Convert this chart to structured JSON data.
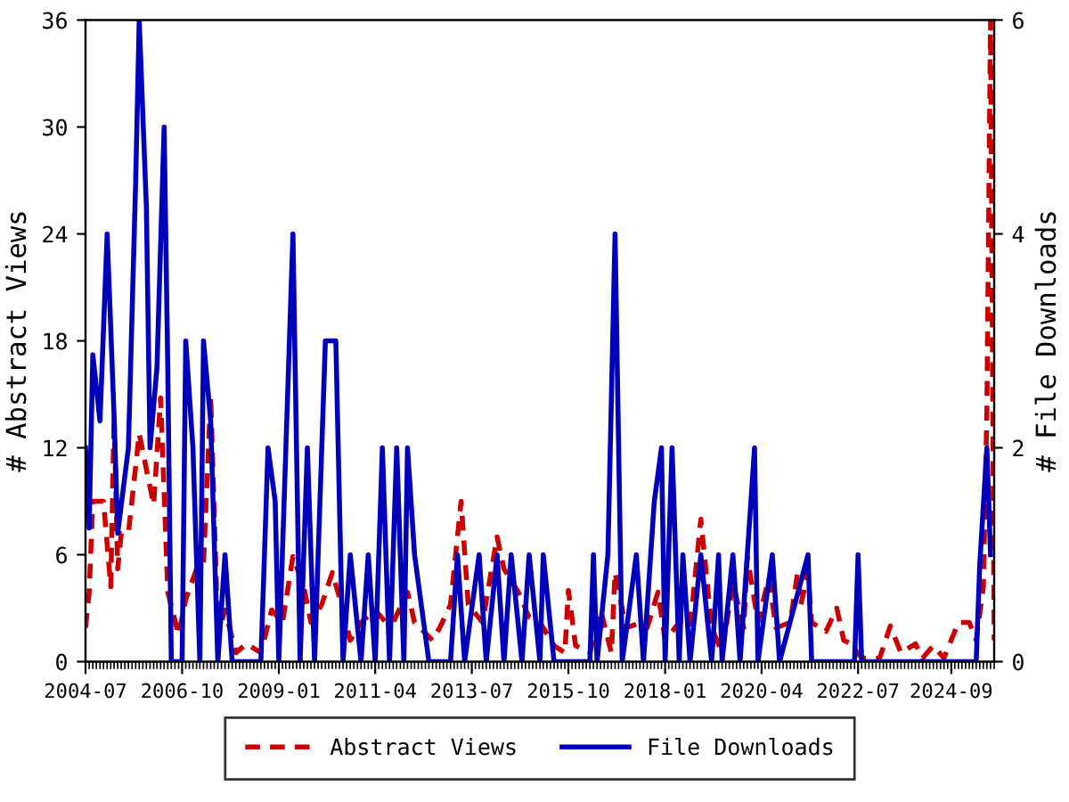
{
  "chart_data": {
    "type": "line",
    "ylabel": "# Abstract Views",
    "y2label": "# File Downloads",
    "xlim": [
      "2004-07",
      "2025-09"
    ],
    "xticks": [
      {
        "value": "2004-07",
        "label": "2004-07"
      },
      {
        "value": "2006-10",
        "label": "2006-10"
      },
      {
        "value": "2009-01",
        "label": "2009-01"
      },
      {
        "value": "2011-04",
        "label": "2011-04"
      },
      {
        "value": "2013-07",
        "label": "2013-07"
      },
      {
        "value": "2015-10",
        "label": "2015-10"
      },
      {
        "value": "2018-01",
        "label": "2018-01"
      },
      {
        "value": "2020-04",
        "label": "2020-04"
      },
      {
        "value": "2022-07",
        "label": "2022-07"
      },
      {
        "value": "2024-09",
        "label": "2024-09"
      }
    ],
    "ylim": [
      0,
      36
    ],
    "yticks": [
      0,
      6,
      12,
      18,
      24,
      30,
      36
    ],
    "y2lim": [
      0,
      6
    ],
    "y2ticks": [
      0,
      2,
      4,
      6
    ],
    "grid": false,
    "legend": "bottom",
    "marker": "none",
    "series": [
      {
        "name": "Abstract Views",
        "color": "#cc0000",
        "line_style": "dashed",
        "x": [
          "2004-07",
          "2004-08",
          "2004-09",
          "2004-12",
          "2005-02",
          "2005-03",
          "2005-04",
          "2005-05",
          "2005-07",
          "2005-10",
          "2005-12",
          "2006-02",
          "2006-04",
          "2006-06",
          "2006-09",
          "2006-11",
          "2007-02",
          "2007-04",
          "2007-06",
          "2007-08",
          "2007-10",
          "2008-01",
          "2008-04",
          "2008-08",
          "2008-11",
          "2009-02",
          "2009-05",
          "2009-08",
          "2009-10",
          "2010-01",
          "2010-04",
          "2010-07",
          "2010-09",
          "2010-12",
          "2011-04",
          "2011-07",
          "2011-09",
          "2012-01",
          "2012-03",
          "2012-08",
          "2012-10",
          "2013-01",
          "2013-04",
          "2013-06",
          "2013-10",
          "2014-02",
          "2014-04",
          "2014-08",
          "2014-11",
          "2015-02",
          "2015-06",
          "2015-09",
          "2015-10",
          "2015-12",
          "2016-04",
          "2016-07",
          "2016-10",
          "2016-11",
          "2017-02",
          "2017-05",
          "2017-08",
          "2017-11",
          "2018-01",
          "2018-05",
          "2018-08",
          "2018-11",
          "2019-02",
          "2019-05",
          "2019-08",
          "2019-11",
          "2019-12",
          "2020-03",
          "2020-06",
          "2020-08",
          "2020-12",
          "2021-02",
          "2021-03",
          "2021-05",
          "2021-06",
          "2021-10",
          "2022-01",
          "2022-03",
          "2022-05",
          "2022-08",
          "2023-01",
          "2023-04",
          "2023-07",
          "2023-11",
          "2024-01",
          "2024-04",
          "2024-07",
          "2024-11",
          "2025-02",
          "2025-04",
          "2025-06",
          "2025-07",
          "2025-08",
          "2025-09"
        ],
        "values": [
          1.9,
          3.9,
          9,
          9,
          4.2,
          13.8,
          5.2,
          7.2,
          7.2,
          12.8,
          10.8,
          8.8,
          14.8,
          3.9,
          1.5,
          3.5,
          5.2,
          5.5,
          14.9,
          1.5,
          2.9,
          0.5,
          1.0,
          0.5,
          2.9,
          2.2,
          5.9,
          4.2,
          2.2,
          3.2,
          5.0,
          2.9,
          1.2,
          2.2,
          2.9,
          2.2,
          2.2,
          3.9,
          2.2,
          1.2,
          1.9,
          3.2,
          9.0,
          3.2,
          2.2,
          7.0,
          5.2,
          3.9,
          2.5,
          2.2,
          0.9,
          0.5,
          4.0,
          0.9,
          0.5,
          2.9,
          0.5,
          5.0,
          1.9,
          2.1,
          1.9,
          3.9,
          1.2,
          2.2,
          1.9,
          8.0,
          1.9,
          0.5,
          4.4,
          1.9,
          5.9,
          2.2,
          4.7,
          1.9,
          2.2,
          5.0,
          3.2,
          5.0,
          2.2,
          1.7,
          3.0,
          1.2,
          1.0,
          0.2,
          0.2,
          2.0,
          0.5,
          1.0,
          0.2,
          0.9,
          0.2,
          2.2,
          2.2,
          1.2,
          4.2,
          14.1,
          36,
          1.2
        ]
      },
      {
        "name": "File Downloads",
        "color": "#0000bb",
        "line_style": "solid",
        "axis": "y2",
        "x": [
          "2004-07",
          "2004-08",
          "2004-09",
          "2004-11",
          "2005-01",
          "2005-03",
          "2005-04",
          "2005-07",
          "2005-09",
          "2005-10",
          "2005-12",
          "2006-01",
          "2006-03",
          "2006-05",
          "2006-06",
          "2006-07",
          "2006-10",
          "2006-11",
          "2007-01",
          "2007-03",
          "2007-04",
          "2007-06",
          "2007-08",
          "2007-10",
          "2007-12",
          "2008-08",
          "2008-10",
          "2008-12",
          "2009-01",
          "2009-05",
          "2009-07",
          "2009-09",
          "2009-11",
          "2010-02",
          "2010-05",
          "2010-07",
          "2010-09",
          "2010-12",
          "2011-02",
          "2011-04",
          "2011-06",
          "2011-08",
          "2011-10",
          "2011-12",
          "2012-01",
          "2012-03",
          "2012-07",
          "2013-01",
          "2013-03",
          "2013-05",
          "2013-09",
          "2013-11",
          "2014-02",
          "2014-04",
          "2014-06",
          "2014-09",
          "2014-11",
          "2015-02",
          "2015-03",
          "2015-06",
          "2016-04",
          "2016-05",
          "2016-06",
          "2016-09",
          "2016-11",
          "2017-01",
          "2017-05",
          "2017-07",
          "2017-10",
          "2017-12",
          "2018-01",
          "2018-03",
          "2018-05",
          "2018-06",
          "2018-08",
          "2018-11",
          "2019-02",
          "2019-04",
          "2019-05",
          "2019-08",
          "2019-10",
          "2020-02",
          "2020-03",
          "2020-07",
          "2020-09",
          "2021-05",
          "2021-06",
          "2022-06",
          "2022-07",
          "2022-08",
          "2025-04",
          "2025-05",
          "2025-07",
          "2025-08"
        ],
        "values": [
          2.0,
          1.25,
          2.87,
          2.25,
          4.0,
          2.3,
          1.2,
          2.0,
          4.5,
          6.0,
          4.25,
          2.0,
          2.75,
          5.0,
          2.75,
          0,
          0,
          3.0,
          2.0,
          0,
          3.0,
          2.25,
          0,
          1,
          0,
          0,
          2,
          1.5,
          0,
          4,
          0,
          2,
          0,
          3,
          3,
          0,
          1,
          0,
          1,
          0,
          2,
          0,
          2,
          0,
          2,
          1,
          0,
          0,
          1,
          0,
          1,
          0,
          1,
          0,
          1,
          0,
          1,
          0,
          1,
          0,
          0,
          1,
          0,
          1,
          4,
          0,
          1,
          0,
          1.5,
          2,
          0,
          2,
          0,
          1,
          0,
          1,
          0,
          1,
          0,
          1,
          0,
          2,
          0,
          1,
          0,
          1,
          0,
          0,
          1,
          0,
          0,
          0.9,
          2,
          1
        ]
      }
    ]
  }
}
